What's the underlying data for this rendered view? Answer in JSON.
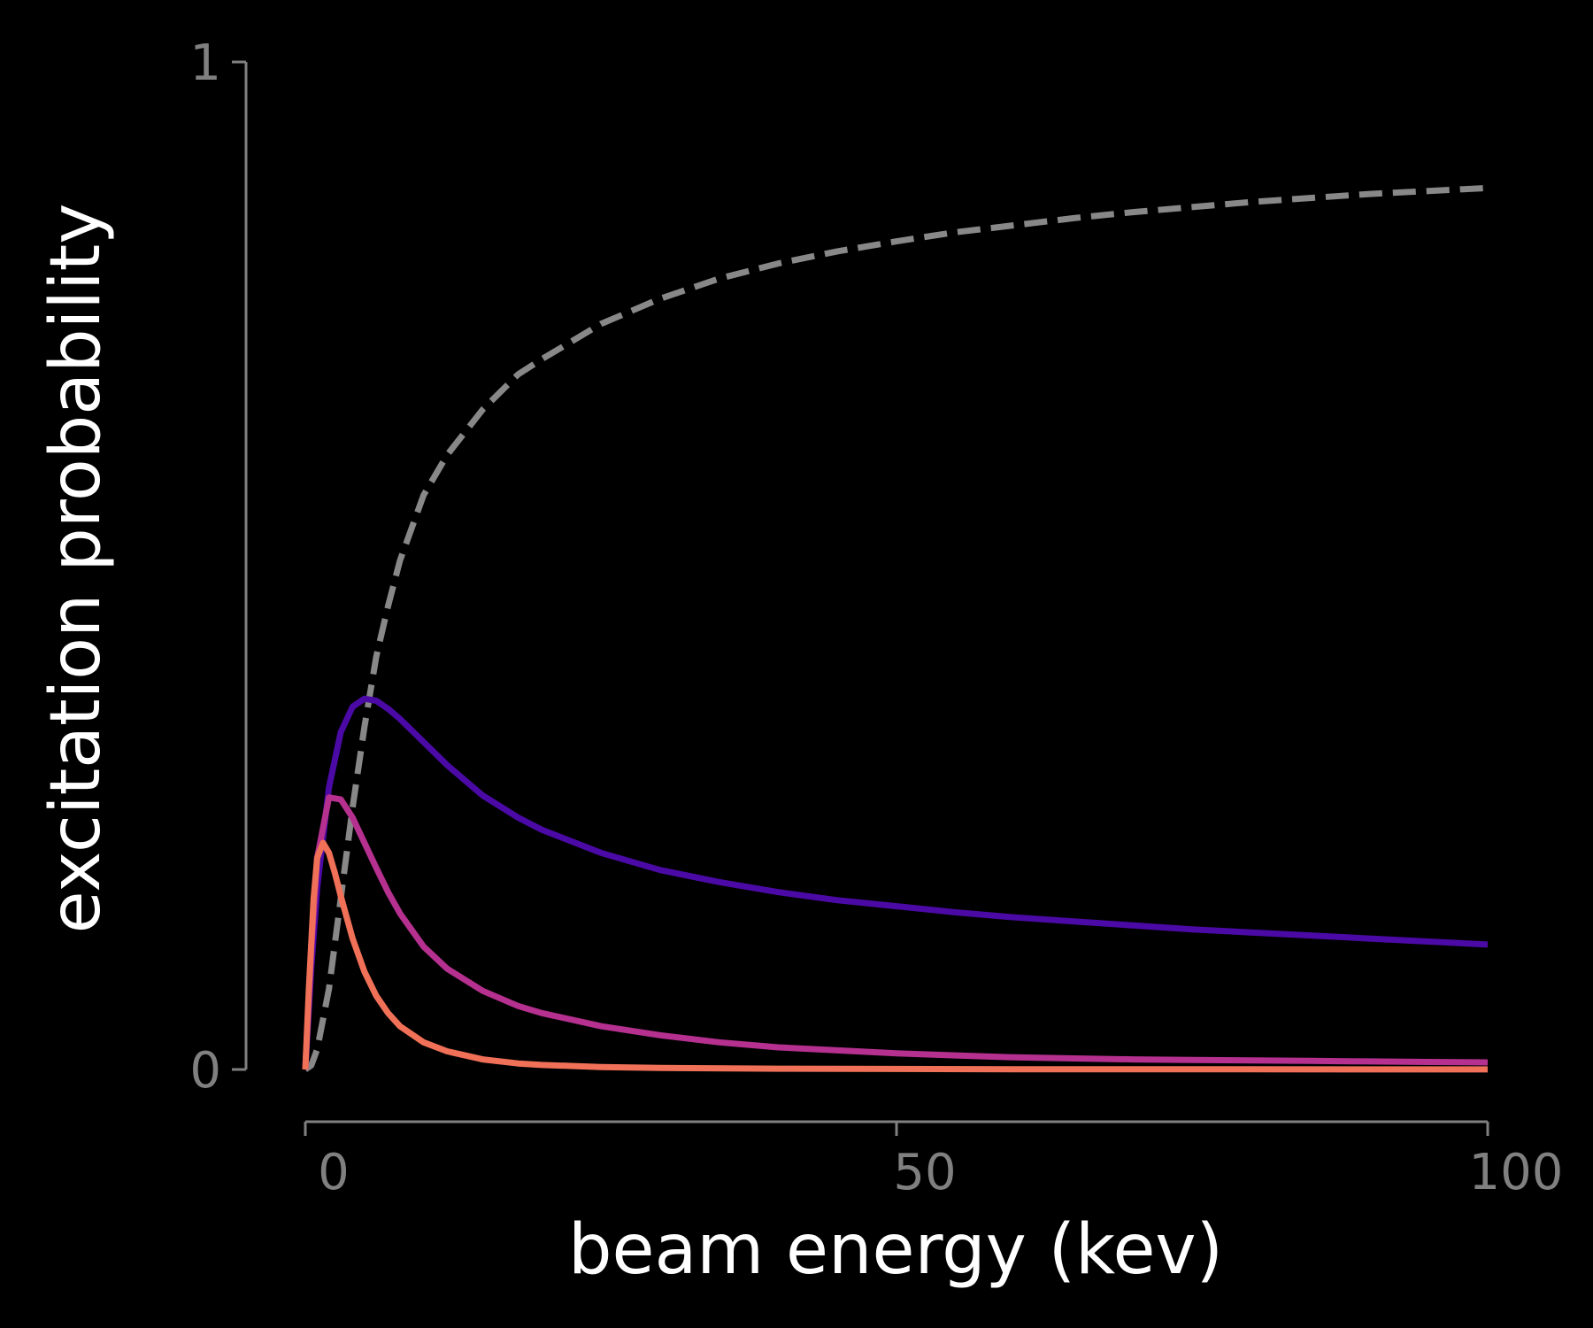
{
  "chart_data": {
    "type": "line",
    "title": "",
    "xlabel": "beam energy (kev)",
    "ylabel": "excitation probability",
    "xlim": [
      0,
      100
    ],
    "ylim": [
      0,
      1
    ],
    "x_ticks": [
      0,
      50,
      100
    ],
    "x_tick_labels": [
      "0",
      "50",
      "100"
    ],
    "y_ticks": [
      0,
      1
    ],
    "y_tick_labels": [
      "0",
      "1"
    ],
    "grid": false,
    "legend": "none",
    "background": "#000000",
    "axis_color": "#808080",
    "series": [
      {
        "color": "#888888",
        "style": "dashed",
        "x": [
          0,
          0.5,
          1,
          2,
          3,
          4,
          5,
          6,
          7,
          8,
          10,
          12,
          15,
          18,
          20,
          25,
          30,
          35,
          40,
          45,
          50,
          55,
          60,
          65,
          70,
          75,
          80,
          85,
          90,
          95,
          100
        ],
        "y": [
          0,
          0.004,
          0.02,
          0.08,
          0.17,
          0.26,
          0.34,
          0.41,
          0.46,
          0.505,
          0.57,
          0.61,
          0.655,
          0.69,
          0.705,
          0.74,
          0.765,
          0.785,
          0.8,
          0.812,
          0.822,
          0.831,
          0.838,
          0.845,
          0.851,
          0.856,
          0.861,
          0.865,
          0.869,
          0.872,
          0.875
        ]
      },
      {
        "color": "#4b0aa5",
        "style": "solid",
        "x": [
          0,
          0.5,
          1,
          2,
          3,
          4,
          5,
          6,
          7,
          8,
          10,
          12,
          15,
          18,
          20,
          25,
          30,
          35,
          40,
          45,
          50,
          55,
          60,
          65,
          70,
          75,
          80,
          85,
          90,
          95,
          100
        ],
        "y": [
          0,
          0.1,
          0.18,
          0.28,
          0.335,
          0.36,
          0.368,
          0.366,
          0.358,
          0.348,
          0.325,
          0.302,
          0.272,
          0.25,
          0.238,
          0.215,
          0.198,
          0.186,
          0.176,
          0.168,
          0.162,
          0.156,
          0.151,
          0.147,
          0.143,
          0.139,
          0.136,
          0.133,
          0.13,
          0.127,
          0.124
        ]
      },
      {
        "color": "#b5308f",
        "style": "solid",
        "x": [
          0,
          0.5,
          1,
          2,
          3,
          4,
          5,
          6,
          7,
          8,
          10,
          12,
          15,
          18,
          20,
          25,
          30,
          35,
          40,
          45,
          50,
          55,
          60,
          65,
          70,
          75,
          80,
          85,
          90,
          95,
          100
        ],
        "y": [
          0,
          0.12,
          0.21,
          0.27,
          0.268,
          0.25,
          0.225,
          0.2,
          0.176,
          0.155,
          0.122,
          0.1,
          0.078,
          0.063,
          0.056,
          0.043,
          0.034,
          0.027,
          0.022,
          0.019,
          0.016,
          0.014,
          0.012,
          0.011,
          0.01,
          0.0095,
          0.009,
          0.0085,
          0.008,
          0.0075,
          0.007
        ]
      },
      {
        "color": "#f07158",
        "style": "solid",
        "x": [
          0,
          0.3,
          0.7,
          1,
          1.5,
          2,
          2.5,
          3,
          4,
          5,
          6,
          7,
          8,
          10,
          12,
          15,
          18,
          20,
          25,
          30,
          40,
          50,
          60,
          70,
          80,
          90,
          100
        ],
        "y": [
          0,
          0.08,
          0.17,
          0.21,
          0.225,
          0.215,
          0.195,
          0.172,
          0.13,
          0.097,
          0.073,
          0.056,
          0.043,
          0.027,
          0.018,
          0.01,
          0.006,
          0.0045,
          0.0025,
          0.0015,
          0.0008,
          0.0005,
          0.0003,
          0.0002,
          0.0002,
          0.0001,
          0.0001
        ]
      }
    ]
  }
}
